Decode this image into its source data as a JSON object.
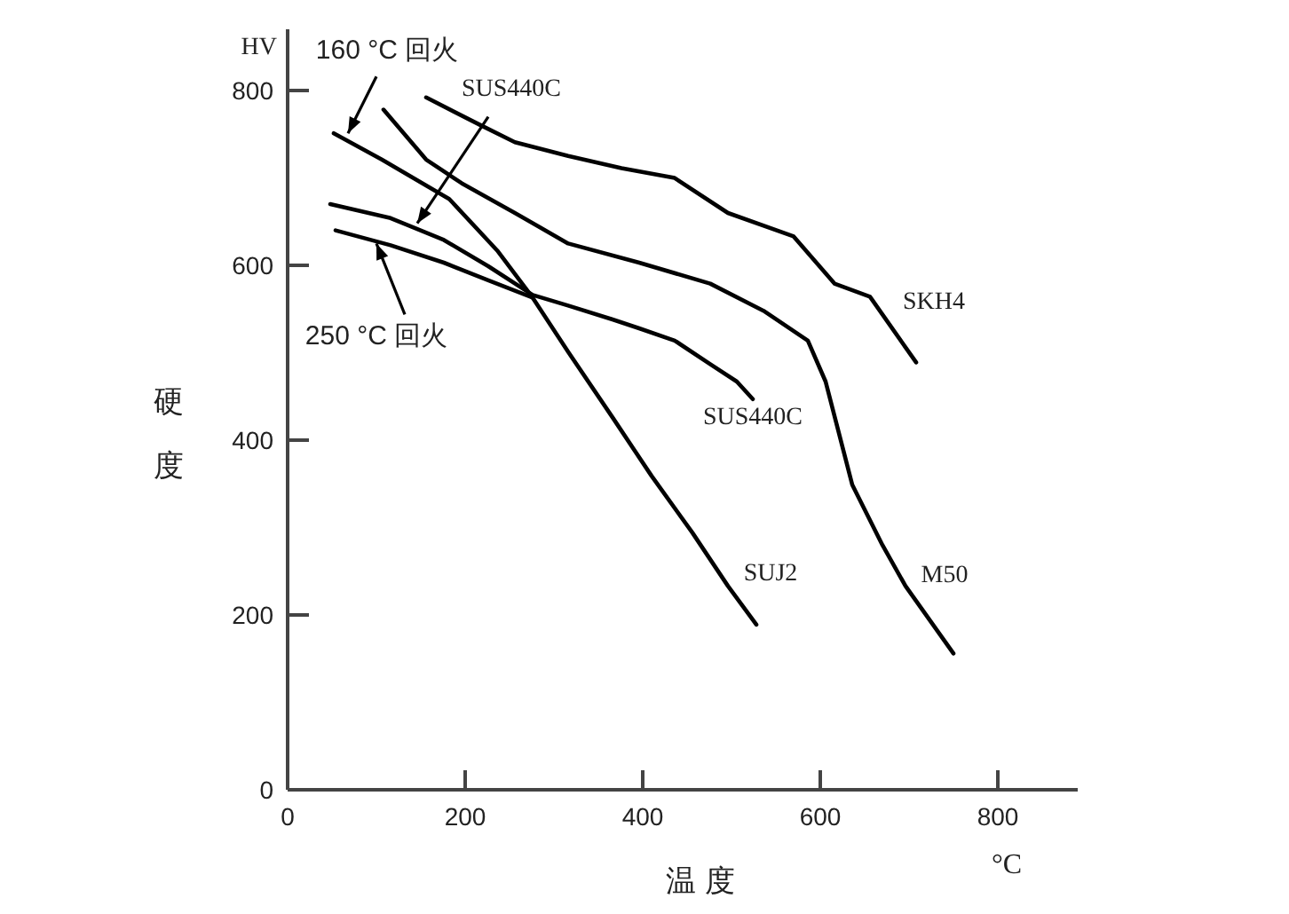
{
  "chart_data": {
    "type": "line",
    "xlabel": "温 度",
    "ylabel": "硬度",
    "xlim": [
      0,
      890
    ],
    "ylim": [
      0,
      870
    ],
    "xticks": [
      0,
      200,
      400,
      600,
      800
    ],
    "yticks": [
      0,
      200,
      400,
      600,
      800
    ],
    "grid": false,
    "legend": false,
    "marker": "none",
    "line_style": "solid",
    "series": [
      {
        "name": "SUJ2",
        "color": "#000000",
        "x": [
          52,
          106,
          182,
          236,
          276,
          316,
          366,
          410,
          456,
          496,
          528
        ],
        "values": [
          751,
          721,
          676,
          617,
          563,
          501,
          426,
          359,
          294,
          233,
          189
        ]
      },
      {
        "color": "#000000",
        "x": [
          54,
          116,
          176,
          226,
          276
        ],
        "values": [
          640,
          623,
          603,
          583,
          563
        ]
      },
      {
        "name": "SUS440C",
        "color": "#000000",
        "x": [
          48,
          116,
          176,
          226,
          276,
          316,
          366,
          396,
          436,
          476,
          506,
          524
        ],
        "values": [
          670,
          654,
          629,
          599,
          566,
          554,
          538,
          528,
          514,
          487,
          467,
          447
        ]
      },
      {
        "name": "M50",
        "color": "#000000",
        "x": [
          108,
          156,
          196,
          256,
          316,
          396,
          476,
          536,
          586,
          606,
          636,
          670,
          696,
          750
        ],
        "values": [
          778,
          721,
          694,
          660,
          625,
          603,
          579,
          548,
          514,
          467,
          349,
          280,
          233,
          156
        ]
      },
      {
        "name": "SKH4",
        "color": "#000000",
        "x": [
          156,
          216,
          256,
          316,
          376,
          436,
          496,
          570,
          616,
          656,
          708
        ],
        "values": [
          792,
          761,
          741,
          725,
          711,
          700,
          660,
          633,
          579,
          564,
          489
        ]
      }
    ],
    "annotations": [
      "HV",
      "°C",
      {
        "text": "160 °C 回火",
        "x": 68,
        "y": 751
      },
      {
        "text": "SUS440C",
        "x": 146,
        "y": 648
      },
      {
        "text": "250 °C 回火",
        "x": 100,
        "y": 625
      }
    ]
  }
}
